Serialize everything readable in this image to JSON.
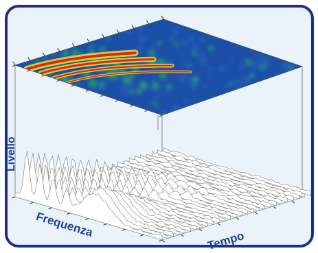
{
  "chart_data": {
    "type": "waterfall-3d-with-spectrogram",
    "xlabel": "Frequenza",
    "ylabel": "Tempo",
    "zlabel": "Livello",
    "grid": false,
    "colors": {
      "frame_border": "#1c2f8f",
      "frame_fill": "#eaf2fa",
      "spectrogram_low": "#1b4fa8",
      "spectrogram_mid": "#2fae63",
      "spectrogram_high": "#f2e21e",
      "spectrogram_peak": "#e2231a",
      "waterfall_line": "#7a7a7a",
      "waterfall_fill": "#ffffff"
    },
    "series": [
      {
        "ridges": [
          0.95,
          0.75,
          0.55,
          0.38
        ]
      }
    ]
  },
  "labels": {
    "livello": "Livello",
    "frequenza": "Frequenza",
    "tempo": "Tempo"
  }
}
